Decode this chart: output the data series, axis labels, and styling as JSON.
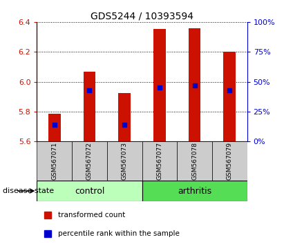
{
  "title": "GDS5244 / 10393594",
  "samples": [
    "GSM567071",
    "GSM567072",
    "GSM567073",
    "GSM567077",
    "GSM567078",
    "GSM567079"
  ],
  "groups": [
    "control",
    "control",
    "control",
    "arthritis",
    "arthritis",
    "arthritis"
  ],
  "transformed_counts": [
    5.785,
    6.065,
    5.925,
    6.355,
    6.36,
    6.2
  ],
  "percentile_ranks": [
    14,
    43,
    14,
    45,
    47,
    43
  ],
  "ylim_left": [
    5.6,
    6.4
  ],
  "ylim_right": [
    0,
    100
  ],
  "yticks_left": [
    5.6,
    5.8,
    6.0,
    6.2,
    6.4
  ],
  "yticks_right": [
    0,
    25,
    50,
    75,
    100
  ],
  "bar_color": "#cc1100",
  "dot_color": "#0000cc",
  "control_color": "#bbffbb",
  "arthritis_color": "#55dd55",
  "label_bg_color": "#cccccc",
  "legend_bar_label": "transformed count",
  "legend_dot_label": "percentile rank within the sample",
  "group_label": "disease state",
  "bar_width": 0.35,
  "bar_bottom": 5.6
}
